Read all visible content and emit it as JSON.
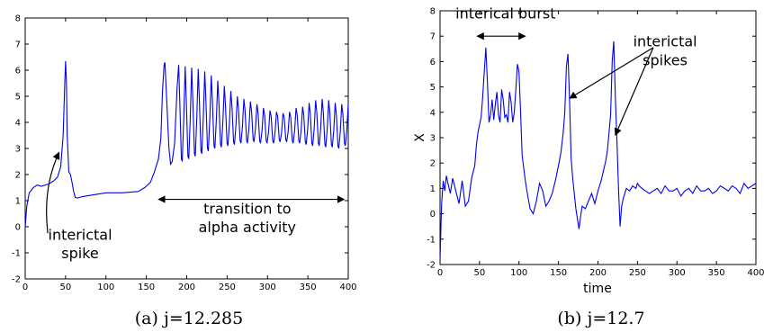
{
  "chart_data": [
    {
      "type": "line",
      "caption": "(a) j=12.285",
      "xlabel": "",
      "ylabel": "",
      "xlim": [
        0,
        400
      ],
      "ylim": [
        -2,
        8
      ],
      "xticks": [
        0,
        50,
        100,
        150,
        200,
        250,
        300,
        350,
        400
      ],
      "yticks": [
        -2,
        -1,
        0,
        1,
        2,
        3,
        4,
        5,
        6,
        7,
        8
      ],
      "color": "#0000ee",
      "grid": false,
      "series": [
        {
          "x": [
            0,
            2,
            5,
            10,
            15,
            20,
            25,
            30,
            35,
            40,
            44,
            47,
            49,
            50,
            51,
            52,
            54,
            56,
            58,
            60,
            62,
            65,
            70,
            80,
            100,
            120,
            140,
            148,
            155,
            160,
            165,
            168,
            170,
            172,
            173,
            175,
            178,
            180,
            182,
            185,
            188,
            190
          ],
          "y": [
            0,
            0.8,
            1.3,
            1.5,
            1.6,
            1.55,
            1.6,
            1.65,
            1.75,
            1.9,
            2.3,
            3.5,
            5.5,
            6.35,
            5.6,
            3.5,
            2.1,
            2.0,
            1.7,
            1.35,
            1.12,
            1.1,
            1.15,
            1.2,
            1.3,
            1.3,
            1.35,
            1.5,
            1.7,
            2.1,
            2.6,
            3.4,
            5.2,
            6.2,
            6.3,
            5.0,
            3.0,
            2.4,
            2.5,
            3.2,
            5.3,
            6.2
          ]
        }
      ],
      "oscillation": {
        "x_start": 190,
        "x_end": 400,
        "peaks": [
          6.2,
          6.15,
          6.1,
          6.05,
          5.95,
          5.8,
          5.6,
          5.4,
          5.2,
          5.0,
          4.9,
          4.8,
          4.7,
          4.55,
          4.45,
          4.4,
          4.35,
          4.4,
          4.55,
          4.6,
          4.75,
          4.85,
          4.9,
          4.85,
          4.75,
          4.7
        ],
        "troughs": [
          2.5,
          2.6,
          2.7,
          2.8,
          2.9,
          3.0,
          3.05,
          3.1,
          3.15,
          3.2,
          3.2,
          3.25,
          3.2,
          3.2,
          3.2,
          3.25,
          3.25,
          3.2,
          3.2,
          3.15,
          3.1,
          3.1,
          3.05,
          3.05,
          3.0,
          3.1
        ]
      },
      "annotations": [
        {
          "text": "interictal",
          "x": 68,
          "y": -0.5
        },
        {
          "text": "spike",
          "x": 68,
          "y": -1.2
        },
        {
          "text": "transition to",
          "x": 275,
          "y": 0.5
        },
        {
          "text": "alpha activity",
          "x": 275,
          "y": -0.2
        }
      ],
      "arrows": [
        {
          "from": [
            28,
            -0.25
          ],
          "to": [
            42,
            2.85
          ],
          "kind": "curved-single"
        },
        {
          "from": [
            165,
            1.05
          ],
          "to": [
            395,
            1.05
          ],
          "kind": "double"
        }
      ]
    },
    {
      "type": "line",
      "caption": "(b) j=12.7",
      "xlabel": "time",
      "ylabel": "X",
      "xlim": [
        0,
        400
      ],
      "ylim": [
        -2,
        8
      ],
      "xticks": [
        0,
        50,
        100,
        150,
        200,
        250,
        300,
        350,
        400
      ],
      "yticks": [
        -2,
        -1,
        0,
        1,
        2,
        3,
        4,
        5,
        6,
        7,
        8
      ],
      "color": "#0000ee",
      "grid": false,
      "series": [
        {
          "x": [
            0,
            2,
            4,
            6,
            8,
            10,
            13,
            16,
            20,
            24,
            28,
            32,
            36,
            40,
            44,
            46,
            48,
            50,
            52,
            54,
            56,
            58,
            60,
            62,
            64,
            66,
            68,
            70,
            72,
            74,
            76,
            78,
            80,
            82,
            84,
            86,
            88,
            90,
            92,
            94,
            96,
            98,
            100,
            102,
            104,
            106,
            108,
            110,
            114,
            118,
            122,
            126,
            130,
            134,
            138,
            142,
            146,
            150,
            153,
            156,
            158,
            160,
            162,
            164,
            166,
            168,
            170,
            172,
            174,
            176,
            178,
            180,
            184,
            188,
            192,
            196,
            200,
            204,
            207,
            210,
            212,
            214,
            216,
            218,
            220,
            222,
            224,
            226,
            228,
            230,
            232,
            236,
            240,
            244,
            248,
            250,
            252,
            256,
            260,
            265,
            270,
            275,
            280,
            285,
            290,
            295,
            300,
            305,
            310,
            315,
            320,
            325,
            330,
            335,
            340,
            345,
            350,
            355,
            360,
            365,
            370,
            375,
            380,
            385,
            390,
            395,
            400
          ],
          "y": [
            -1.8,
            0.4,
            1.3,
            0.9,
            1.5,
            1.2,
            0.8,
            1.4,
            0.9,
            0.4,
            1.3,
            0.3,
            0.5,
            1.4,
            1.9,
            2.7,
            3.2,
            3.5,
            3.8,
            4.6,
            5.6,
            6.55,
            5.2,
            3.6,
            3.9,
            4.5,
            3.7,
            4.3,
            4.8,
            3.9,
            3.6,
            4.9,
            4.5,
            3.8,
            3.9,
            3.6,
            4.8,
            4.4,
            3.6,
            4.0,
            4.9,
            5.9,
            5.6,
            4.0,
            2.3,
            1.8,
            1.3,
            0.9,
            0.2,
            0.0,
            0.5,
            1.2,
            0.9,
            0.3,
            0.5,
            0.8,
            1.3,
            1.9,
            2.4,
            3.2,
            4.0,
            5.8,
            6.3,
            4.5,
            2.2,
            1.4,
            0.8,
            0.2,
            -0.2,
            -0.6,
            -0.1,
            0.3,
            0.2,
            0.5,
            0.8,
            0.4,
            0.9,
            1.3,
            1.7,
            2.1,
            2.5,
            3.2,
            3.9,
            6.0,
            6.8,
            4.6,
            2.9,
            1.0,
            -0.5,
            0.3,
            0.6,
            1.0,
            0.9,
            1.1,
            1.0,
            1.2,
            1.1,
            1.0,
            0.9,
            0.8,
            0.9,
            1.0,
            0.8,
            1.1,
            0.9,
            0.9,
            1.0,
            0.7,
            0.9,
            1.0,
            0.8,
            1.1,
            0.9,
            0.9,
            1.0,
            0.8,
            0.9,
            1.1,
            1.0,
            0.9,
            1.1,
            1.0,
            0.8,
            1.2,
            1.0,
            1.1,
            1.2
          ]
        }
      ],
      "annotations": [
        {
          "text": "interical burst",
          "x": 83,
          "y": 7.7
        },
        {
          "text": "interictal",
          "x": 285,
          "y": 6.6
        },
        {
          "text": "spikes",
          "x": 285,
          "y": 5.85
        }
      ],
      "arrows": [
        {
          "from": [
            47,
            7.0
          ],
          "to": [
            108,
            7.0
          ],
          "kind": "double"
        },
        {
          "from": [
            270,
            6.55
          ],
          "to": [
            164,
            4.55
          ],
          "kind": "single"
        },
        {
          "from": [
            270,
            6.55
          ],
          "to": [
            222,
            3.1
          ],
          "kind": "single"
        }
      ]
    }
  ]
}
